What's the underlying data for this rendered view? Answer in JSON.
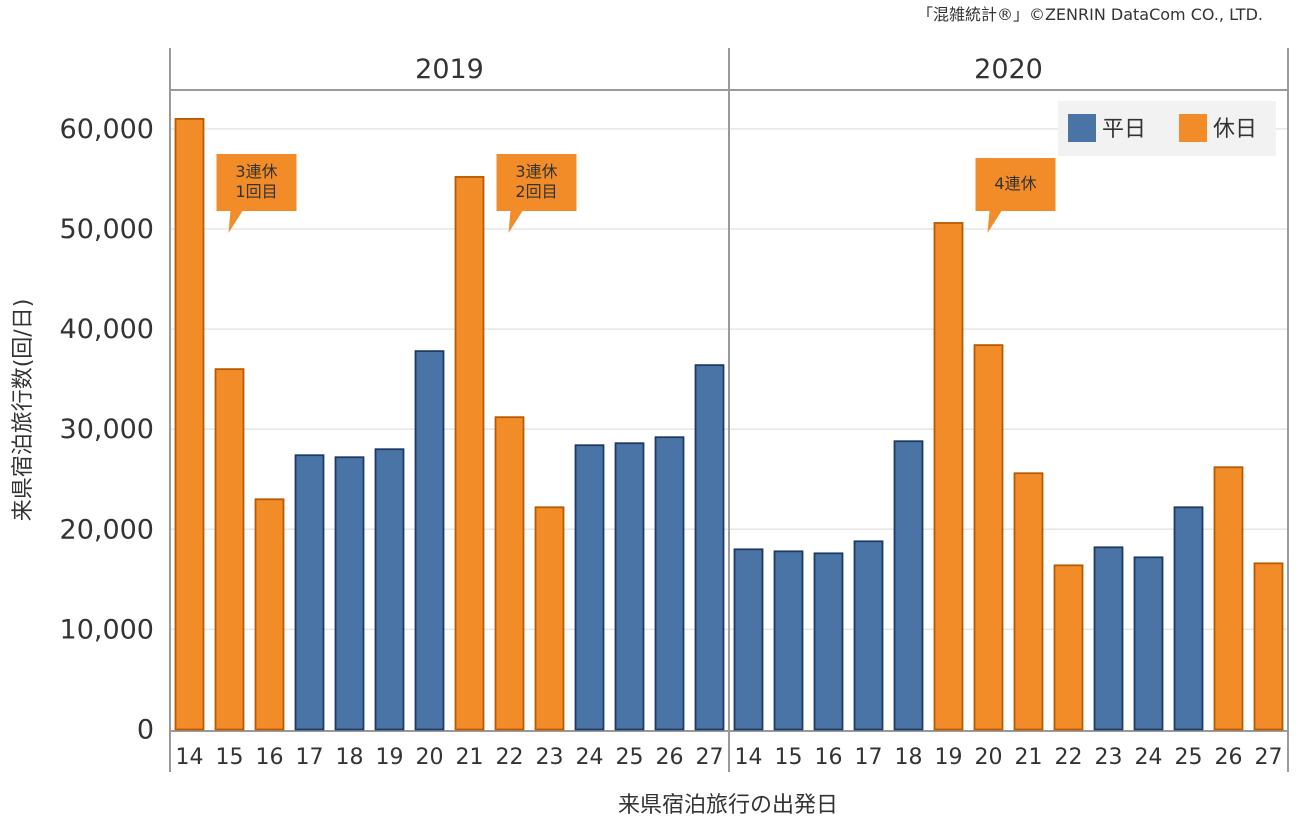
{
  "chart_data": {
    "type": "bar",
    "copyright": "「混雑統計®」©ZENRIN DataCom CO., LTD.",
    "ylabel": "来県宿泊旅行数(回/日)",
    "xlabel": "来県宿泊旅行の出発日",
    "ylim": [
      0,
      64000
    ],
    "yticks": [
      0,
      10000,
      20000,
      30000,
      40000,
      50000,
      60000
    ],
    "ytick_labels": [
      "0",
      "10,000",
      "20,000",
      "30,000",
      "40,000",
      "50,000",
      "60,000"
    ],
    "legend": {
      "position": "top-right",
      "items": [
        {
          "key": "weekday",
          "label": "平日",
          "color": "#4a74a5"
        },
        {
          "key": "holiday",
          "label": "休日",
          "color": "#f28c28"
        }
      ]
    },
    "panels": [
      {
        "title": "2019",
        "categories": [
          "14",
          "15",
          "16",
          "17",
          "18",
          "19",
          "20",
          "21",
          "22",
          "23",
          "24",
          "25",
          "26",
          "27"
        ],
        "values": [
          61000,
          36000,
          23000,
          27400,
          27200,
          28000,
          37800,
          55200,
          31200,
          22200,
          28400,
          28600,
          29200,
          36400
        ],
        "day_types": [
          "holiday",
          "holiday",
          "holiday",
          "weekday",
          "weekday",
          "weekday",
          "weekday",
          "holiday",
          "holiday",
          "holiday",
          "weekday",
          "weekday",
          "weekday",
          "weekday"
        ],
        "annotations": [
          {
            "lines": [
              "3連休",
              "1回目"
            ],
            "anchor_index": 1
          },
          {
            "lines": [
              "3連休",
              "2回目"
            ],
            "anchor_index": 8
          }
        ]
      },
      {
        "title": "2020",
        "categories": [
          "14",
          "15",
          "16",
          "17",
          "18",
          "19",
          "20",
          "21",
          "22",
          "23",
          "24",
          "25",
          "26",
          "27"
        ],
        "values": [
          18000,
          17800,
          17600,
          18800,
          28800,
          50600,
          38400,
          25600,
          16400,
          18200,
          17200,
          22200,
          26200,
          16600
        ],
        "day_types": [
          "weekday",
          "weekday",
          "weekday",
          "weekday",
          "weekday",
          "holiday",
          "holiday",
          "holiday",
          "holiday",
          "weekday",
          "weekday",
          "weekday",
          "holiday",
          "holiday"
        ],
        "annotations": [
          {
            "lines": [
              "4連休"
            ],
            "anchor_index": 6
          }
        ]
      }
    ],
    "colors": {
      "weekday": "#4a74a5",
      "weekday_edge": "#1e3a66",
      "holiday": "#f28c28",
      "holiday_edge": "#b85a00",
      "grid": "#e6e6e6",
      "frame": "#9a9a9a",
      "annotation": "#f28c28"
    }
  }
}
